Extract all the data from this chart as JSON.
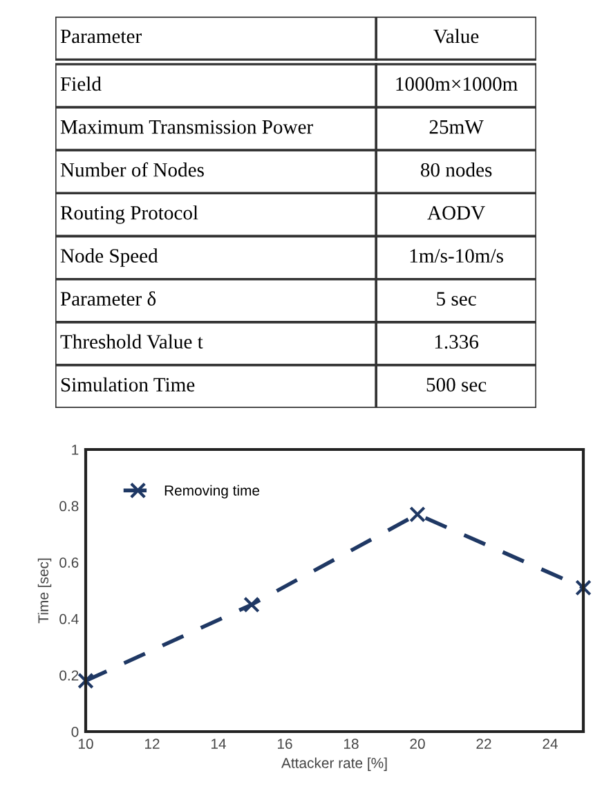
{
  "chart_data": [
    {
      "type": "other",
      "annotations": [
        "Parameter",
        "Value",
        "Field",
        "1000m×1000m",
        "Maximum Transmission Power",
        "25mW",
        "Number of Nodes",
        "80 nodes",
        "Routing Protocol",
        "AODV",
        "Node Speed",
        "1m/s-10m/s",
        "Parameter δ",
        "5 sec",
        "Threshold Value t",
        "1.336",
        "Simulation Time",
        "500 sec"
      ]
    },
    {
      "type": "line",
      "xlabel": "Attacker rate [%]",
      "ylabel": "Time [sec]",
      "x": [
        10,
        15,
        20,
        25
      ],
      "series": [
        {
          "name": "Removing time",
          "color": "#1f3864",
          "values": [
            0.18,
            0.45,
            0.77,
            0.51
          ]
        }
      ],
      "xlim": [
        10,
        25
      ],
      "xticks": [
        10,
        12,
        14,
        16,
        18,
        20,
        22,
        24
      ],
      "ylim": [
        0,
        1
      ],
      "yticks": [
        0,
        0.2,
        0.4,
        0.6,
        0.8,
        1
      ],
      "marker": "cross",
      "line_style": "dashed",
      "legend": "top left",
      "grid": false
    }
  ]
}
